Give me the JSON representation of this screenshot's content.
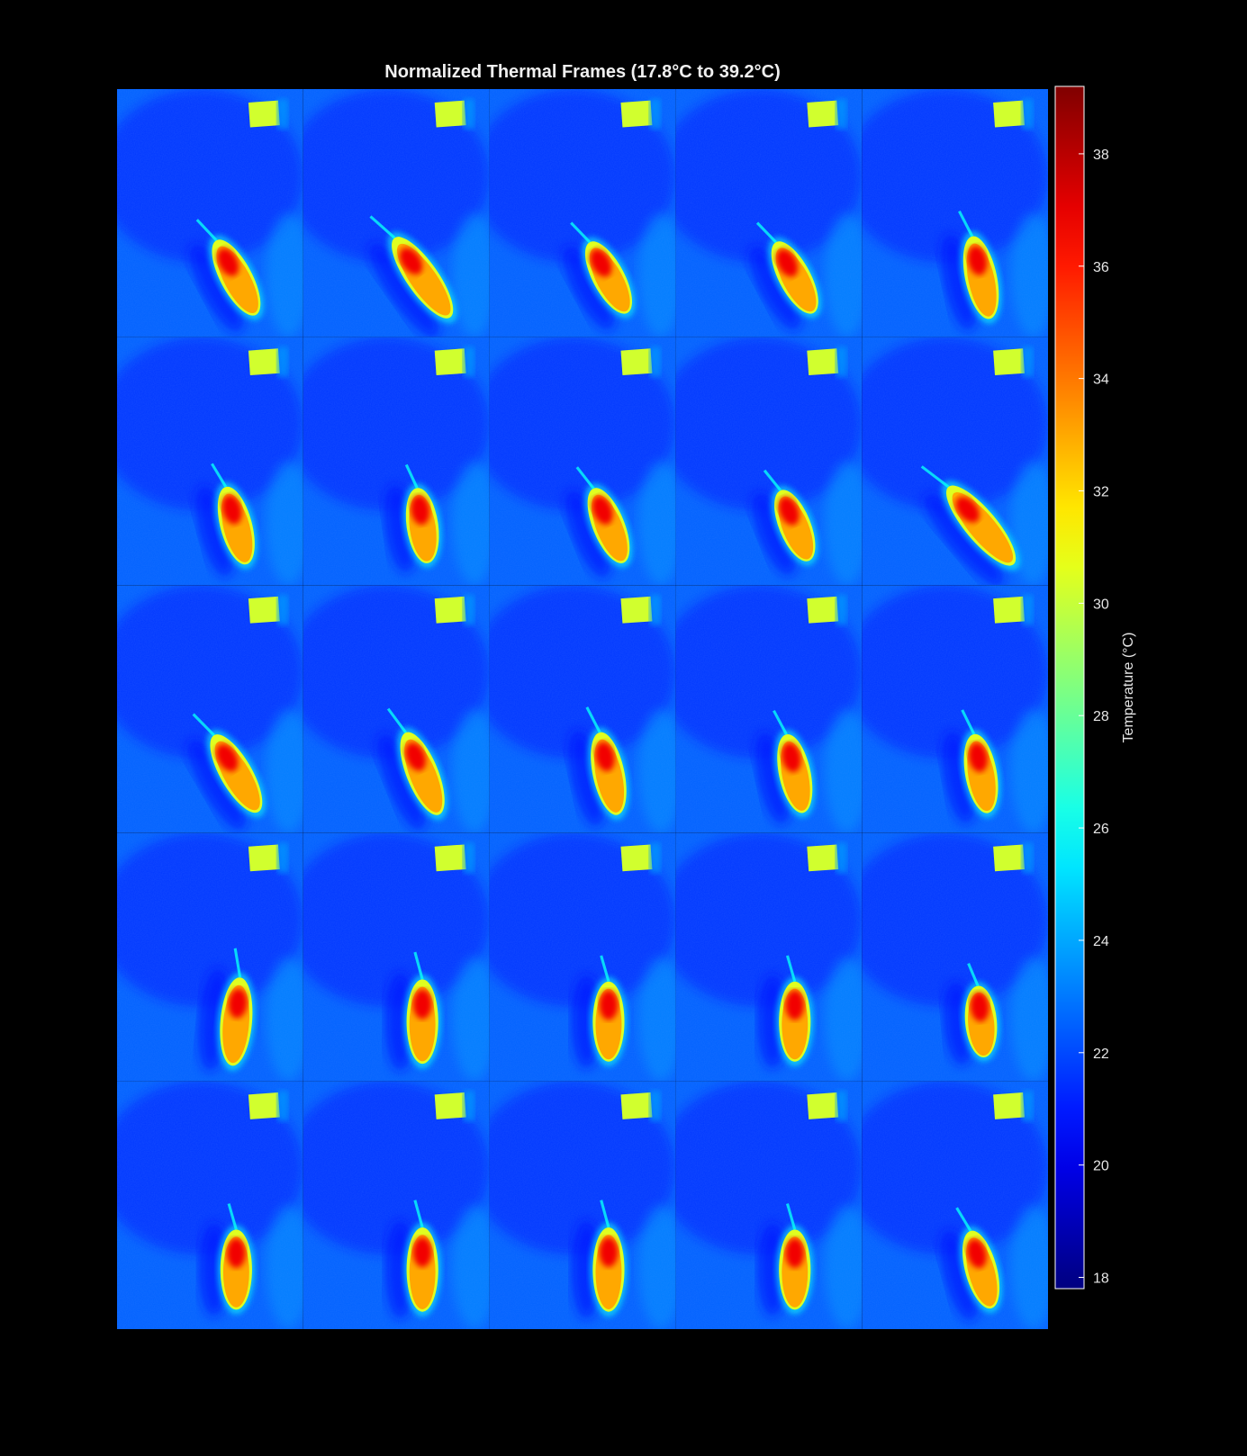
{
  "figure": {
    "title": "Normalized Thermal Frames (17.8°C to 39.2°C)"
  },
  "chart_data": {
    "type": "heatmap",
    "title": "Normalized Thermal Frames (17.8°C to 39.2°C)",
    "grid": {
      "rows": 5,
      "cols": 5,
      "frame_count": 25
    },
    "colormap": "jet",
    "clim": [
      17.8,
      39.2
    ],
    "colorbar": {
      "label": "Temperature (°C)",
      "ticks": [
        18,
        20,
        22,
        24,
        26,
        28,
        30,
        32,
        34,
        36,
        38
      ],
      "placement": "right"
    },
    "background_temp_c": 22.5,
    "reference_block_temp_c": 30.2,
    "animal_body_temp_c": 33.0,
    "animal_head_temp_c": 36.8
  }
}
